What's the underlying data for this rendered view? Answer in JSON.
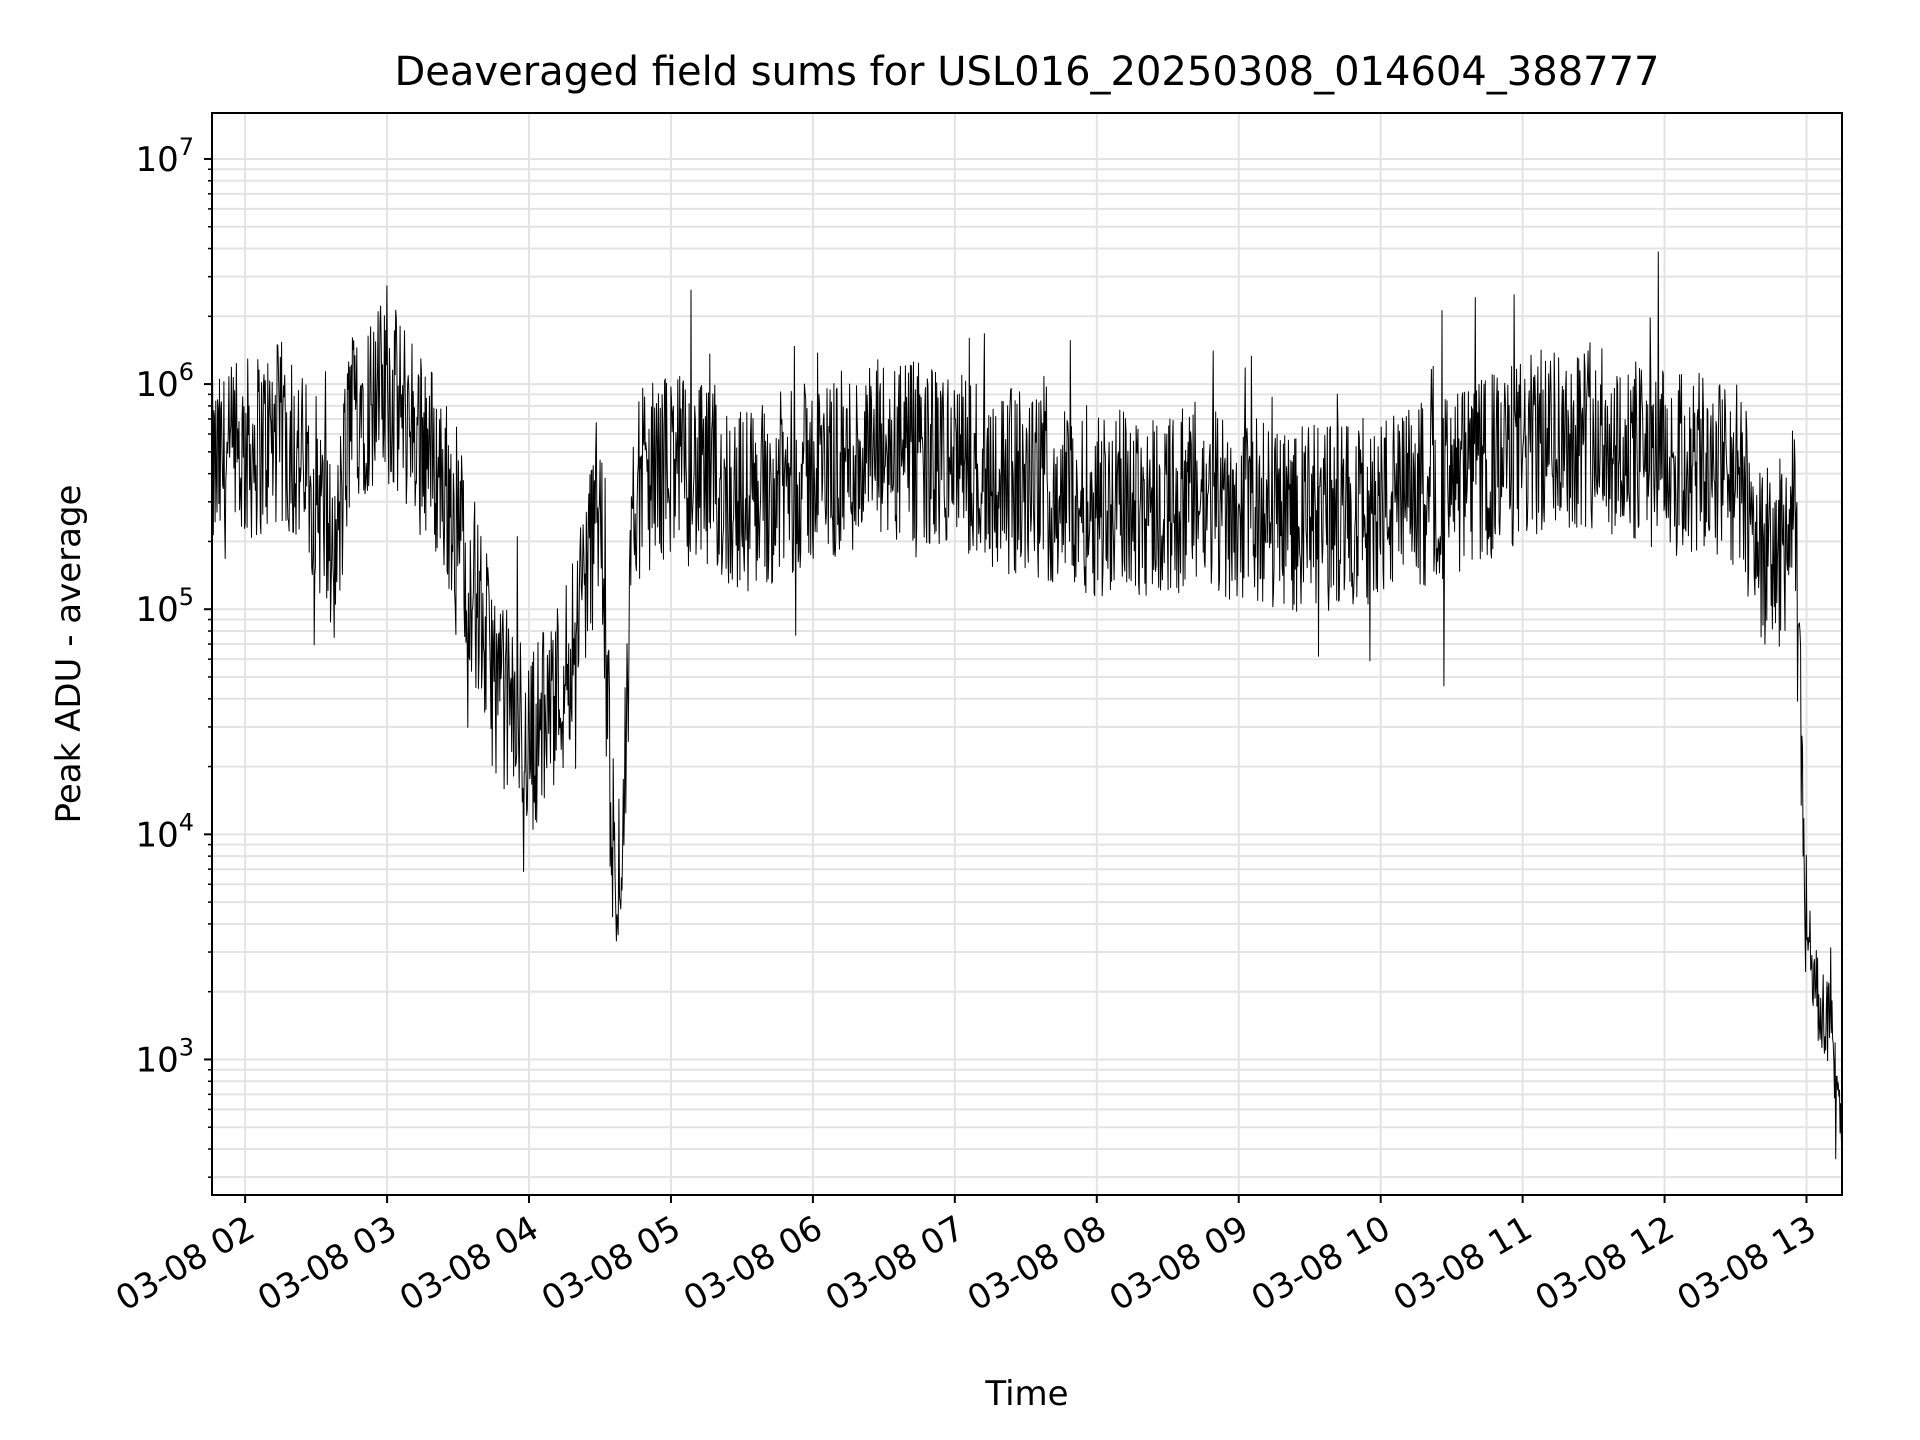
{
  "chart_data": {
    "type": "line",
    "title": "Deaveraged field sums for USL016_20250308_014604_388777",
    "xlabel": "Time",
    "ylabel": "Peak ADU - average",
    "yscale": "log",
    "ylim": [
      250,
      16000000
    ],
    "xlim": [
      "03-08 01:46",
      "03-08 13:15"
    ],
    "grid": true,
    "line_color": "#000000",
    "x_ticks": [
      {
        "time": "03-08 02:00",
        "label": "03-08 02"
      },
      {
        "time": "03-08 03:00",
        "label": "03-08 03"
      },
      {
        "time": "03-08 04:00",
        "label": "03-08 04"
      },
      {
        "time": "03-08 05:00",
        "label": "03-08 05"
      },
      {
        "time": "03-08 06:00",
        "label": "03-08 06"
      },
      {
        "time": "03-08 07:00",
        "label": "03-08 07"
      },
      {
        "time": "03-08 08:00",
        "label": "03-08 08"
      },
      {
        "time": "03-08 09:00",
        "label": "03-08 09"
      },
      {
        "time": "03-08 10:00",
        "label": "03-08 10"
      },
      {
        "time": "03-08 11:00",
        "label": "03-08 11"
      },
      {
        "time": "03-08 12:00",
        "label": "03-08 12"
      },
      {
        "time": "03-08 13:00",
        "label": "03-08 13"
      }
    ],
    "y_ticks": [
      {
        "value": 1000,
        "mantissa": "10",
        "exponent": "3"
      },
      {
        "value": 10000,
        "mantissa": "10",
        "exponent": "4"
      },
      {
        "value": 100000,
        "mantissa": "10",
        "exponent": "5"
      },
      {
        "value": 1000000,
        "mantissa": "10",
        "exponent": "6"
      },
      {
        "value": 10000000,
        "mantissa": "10",
        "exponent": "7"
      }
    ],
    "series": [
      {
        "x": [
          "03-08 01:46",
          "03-08 02:00",
          "03-08 02:15",
          "03-08 02:30",
          "03-08 02:38",
          "03-08 02:45",
          "03-08 03:00",
          "03-08 03:15",
          "03-08 03:30",
          "03-08 03:45",
          "03-08 04:00",
          "03-08 04:15",
          "03-08 04:30",
          "03-08 04:37",
          "03-08 04:45",
          "03-08 05:00",
          "03-08 05:30",
          "03-08 06:00",
          "03-08 06:30",
          "03-08 07:00",
          "03-08 07:30",
          "03-08 08:00",
          "03-08 08:30",
          "03-08 09:00",
          "03-08 09:30",
          "03-08 10:00",
          "03-08 10:30",
          "03-08 11:00",
          "03-08 11:15",
          "03-08 11:30",
          "03-08 11:45",
          "03-08 12:00",
          "03-08 12:30",
          "03-08 12:45",
          "03-08 12:55",
          "03-08 13:00",
          "03-08 13:05",
          "03-08 13:10",
          "03-08 13:15"
        ],
        "y": [
          400000,
          500000,
          600000,
          350000,
          150000,
          800000,
          900000,
          600000,
          250000,
          50000,
          25000,
          50000,
          300000,
          3000,
          350000,
          450000,
          300000,
          400000,
          500000,
          450000,
          350000,
          300000,
          300000,
          280000,
          250000,
          280000,
          350000,
          500000,
          600000,
          600000,
          500000,
          450000,
          400000,
          150000,
          250000,
          4000,
          1800,
          1500,
          400
        ]
      }
    ]
  }
}
